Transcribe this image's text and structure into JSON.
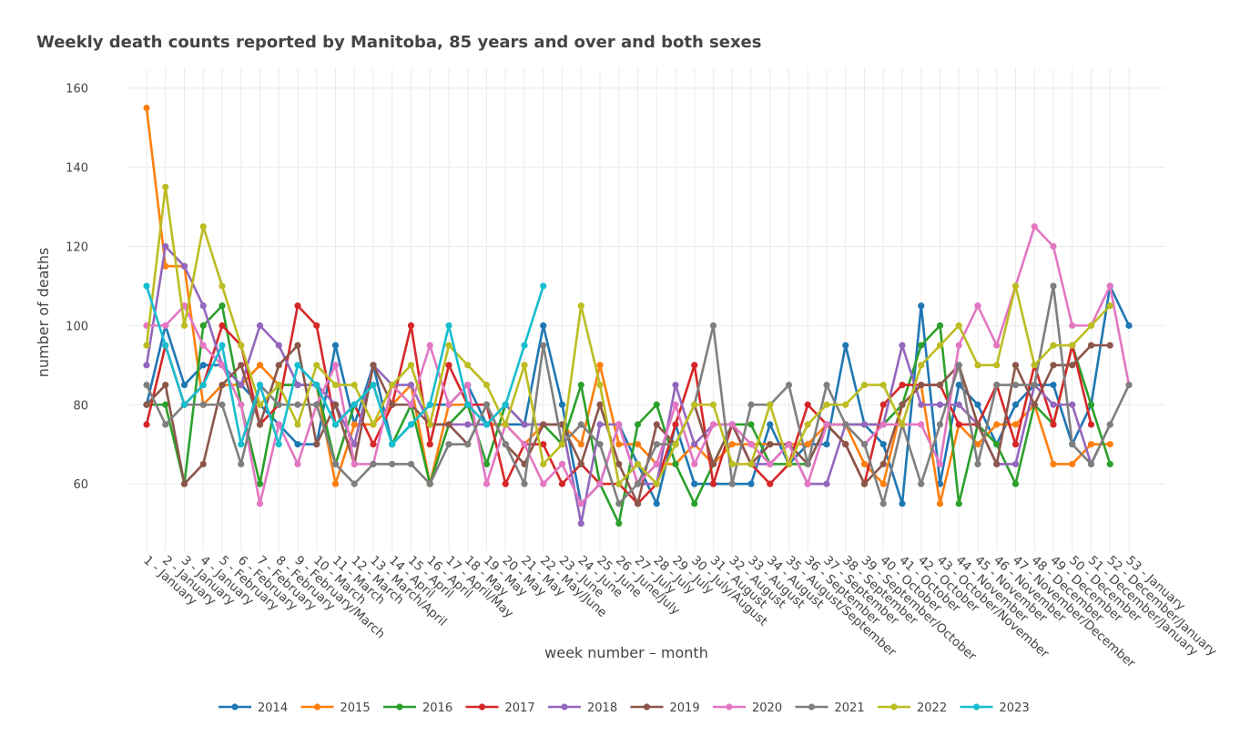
{
  "chart_data": {
    "type": "line",
    "title": "Weekly death counts reported by Manitoba, 85 years and over and both sexes",
    "xlabel": "week number – month",
    "ylabel": "number of deaths",
    "ylim": [
      43,
      165
    ],
    "yticks": [
      60,
      80,
      100,
      120,
      140,
      160
    ],
    "grid": true,
    "legend_position": "bottom",
    "categories": [
      "1 - January",
      "2 - January",
      "3 - January",
      "4 - January",
      "5 - February",
      "6 - February",
      "7 - February",
      "8 - February",
      "9 - February/March",
      "10 - March",
      "11 - March",
      "12 - March",
      "13 - March/April",
      "14 - April",
      "15 - April",
      "16 - April",
      "17 - April/May",
      "18 - May",
      "19 - May",
      "20 - May",
      "21 - May",
      "22 - May/June",
      "23 - June",
      "24 - June",
      "25 - June",
      "26 - June/July",
      "27 - July",
      "28 - July",
      "29 - July",
      "30 - July/August",
      "31 - August",
      "32 - August",
      "33 - August",
      "34 - August",
      "35 - August/September",
      "36 - September",
      "37 - September",
      "38 - September",
      "39 - September/October",
      "40 - October",
      "41 - October",
      "42 - October",
      "43 - October/November",
      "44 - November",
      "45 - November",
      "46 - November",
      "47 - November/December",
      "48 - December",
      "49 - December",
      "50 - December",
      "51 - December/January",
      "52 - December/January",
      "53 - January"
    ],
    "series": [
      {
        "name": "2014",
        "color": "#1f77b4",
        "values": [
          80,
          100,
          85,
          90,
          90,
          85,
          80,
          75,
          70,
          70,
          95,
          75,
          90,
          70,
          75,
          80,
          80,
          85,
          75,
          75,
          75,
          100,
          80,
          55,
          60,
          75,
          65,
          55,
          75,
          60,
          60,
          60,
          60,
          75,
          65,
          70,
          70,
          95,
          75,
          70,
          55,
          105,
          60,
          85,
          80,
          70,
          80,
          85,
          85,
          70,
          80,
          110,
          100
        ]
      },
      {
        "name": "2015",
        "color": "#ff7f0e",
        "values": [
          155,
          115,
          115,
          80,
          85,
          85,
          90,
          85,
          85,
          85,
          60,
          75,
          75,
          80,
          85,
          60,
          80,
          80,
          75,
          75,
          70,
          75,
          75,
          70,
          90,
          70,
          70,
          65,
          65,
          70,
          65,
          70,
          70,
          70,
          70,
          70,
          75,
          75,
          65,
          60,
          80,
          85,
          55,
          75,
          70,
          75,
          75,
          80,
          65,
          65,
          70,
          70,
          null
        ]
      },
      {
        "name": "2016",
        "color": "#2ca02c",
        "values": [
          80,
          80,
          60,
          100,
          105,
          80,
          60,
          85,
          85,
          85,
          65,
          80,
          85,
          70,
          80,
          60,
          75,
          80,
          65,
          80,
          75,
          75,
          70,
          85,
          60,
          50,
          75,
          80,
          65,
          55,
          65,
          75,
          75,
          65,
          65,
          65,
          75,
          75,
          75,
          75,
          80,
          95,
          100,
          55,
          75,
          70,
          60,
          80,
          75,
          95,
          80,
          65,
          null
        ]
      },
      {
        "name": "2017",
        "color": "#d62728",
        "values": [
          75,
          95,
          80,
          85,
          100,
          95,
          75,
          80,
          105,
          100,
          75,
          80,
          70,
          80,
          100,
          70,
          90,
          80,
          80,
          60,
          70,
          70,
          60,
          65,
          60,
          60,
          55,
          60,
          75,
          90,
          60,
          75,
          65,
          60,
          65,
          80,
          75,
          70,
          60,
          80,
          85,
          85,
          85,
          75,
          75,
          85,
          70,
          90,
          75,
          95,
          75,
          null,
          null
        ]
      },
      {
        "name": "2018",
        "color": "#9467bd",
        "values": [
          90,
          120,
          115,
          105,
          90,
          85,
          100,
          95,
          85,
          85,
          80,
          70,
          90,
          85,
          85,
          75,
          75,
          75,
          75,
          80,
          75,
          75,
          75,
          50,
          75,
          75,
          60,
          60,
          85,
          70,
          75,
          75,
          65,
          65,
          70,
          60,
          60,
          75,
          75,
          75,
          95,
          80,
          80,
          80,
          75,
          65,
          65,
          85,
          80,
          80,
          65,
          75,
          null
        ]
      },
      {
        "name": "2019",
        "color": "#8c564b",
        "values": [
          80,
          85,
          60,
          65,
          85,
          90,
          75,
          90,
          95,
          70,
          80,
          65,
          90,
          80,
          80,
          75,
          75,
          70,
          80,
          70,
          65,
          75,
          75,
          65,
          80,
          65,
          55,
          75,
          70,
          80,
          65,
          75,
          65,
          70,
          70,
          65,
          75,
          70,
          60,
          65,
          80,
          85,
          85,
          90,
          75,
          65,
          90,
          80,
          90,
          90,
          95,
          95,
          null
        ]
      },
      {
        "name": "2020",
        "color": "#e377c2",
        "values": [
          100,
          100,
          105,
          95,
          90,
          80,
          55,
          75,
          65,
          80,
          90,
          65,
          65,
          85,
          80,
          95,
          80,
          85,
          60,
          75,
          70,
          60,
          65,
          55,
          60,
          75,
          60,
          65,
          80,
          65,
          75,
          75,
          70,
          65,
          70,
          60,
          75,
          75,
          70,
          75,
          75,
          75,
          65,
          95,
          105,
          95,
          110,
          125,
          120,
          100,
          100,
          110,
          85
        ]
      },
      {
        "name": "2021",
        "color": "#7f7f7f",
        "values": [
          85,
          75,
          80,
          80,
          80,
          65,
          85,
          80,
          80,
          80,
          65,
          60,
          65,
          65,
          65,
          60,
          70,
          70,
          80,
          70,
          60,
          95,
          70,
          75,
          70,
          55,
          60,
          70,
          70,
          80,
          100,
          60,
          80,
          80,
          85,
          65,
          85,
          75,
          70,
          55,
          75,
          60,
          75,
          90,
          65,
          85,
          85,
          85,
          110,
          70,
          65,
          75,
          85
        ]
      },
      {
        "name": "2022",
        "color": "#bcbd22",
        "values": [
          95,
          135,
          100,
          125,
          110,
          95,
          80,
          85,
          75,
          90,
          85,
          85,
          75,
          85,
          90,
          75,
          95,
          90,
          85,
          75,
          90,
          65,
          70,
          105,
          85,
          60,
          65,
          60,
          70,
          80,
          80,
          65,
          65,
          80,
          65,
          75,
          80,
          80,
          85,
          85,
          75,
          90,
          95,
          100,
          90,
          90,
          110,
          90,
          95,
          95,
          100,
          105,
          null
        ]
      },
      {
        "name": "2023",
        "color": "#17becf",
        "values": [
          110,
          95,
          80,
          85,
          95,
          70,
          85,
          70,
          90,
          85,
          75,
          80,
          85,
          70,
          75,
          80,
          100,
          80,
          75,
          80,
          95,
          110,
          null,
          null,
          null,
          null,
          null,
          null,
          null,
          null,
          null,
          null,
          null,
          null,
          null,
          null,
          null,
          null,
          null,
          null,
          null,
          null,
          null,
          null,
          null,
          null,
          null,
          null,
          null,
          null,
          null,
          null,
          null
        ]
      }
    ]
  }
}
